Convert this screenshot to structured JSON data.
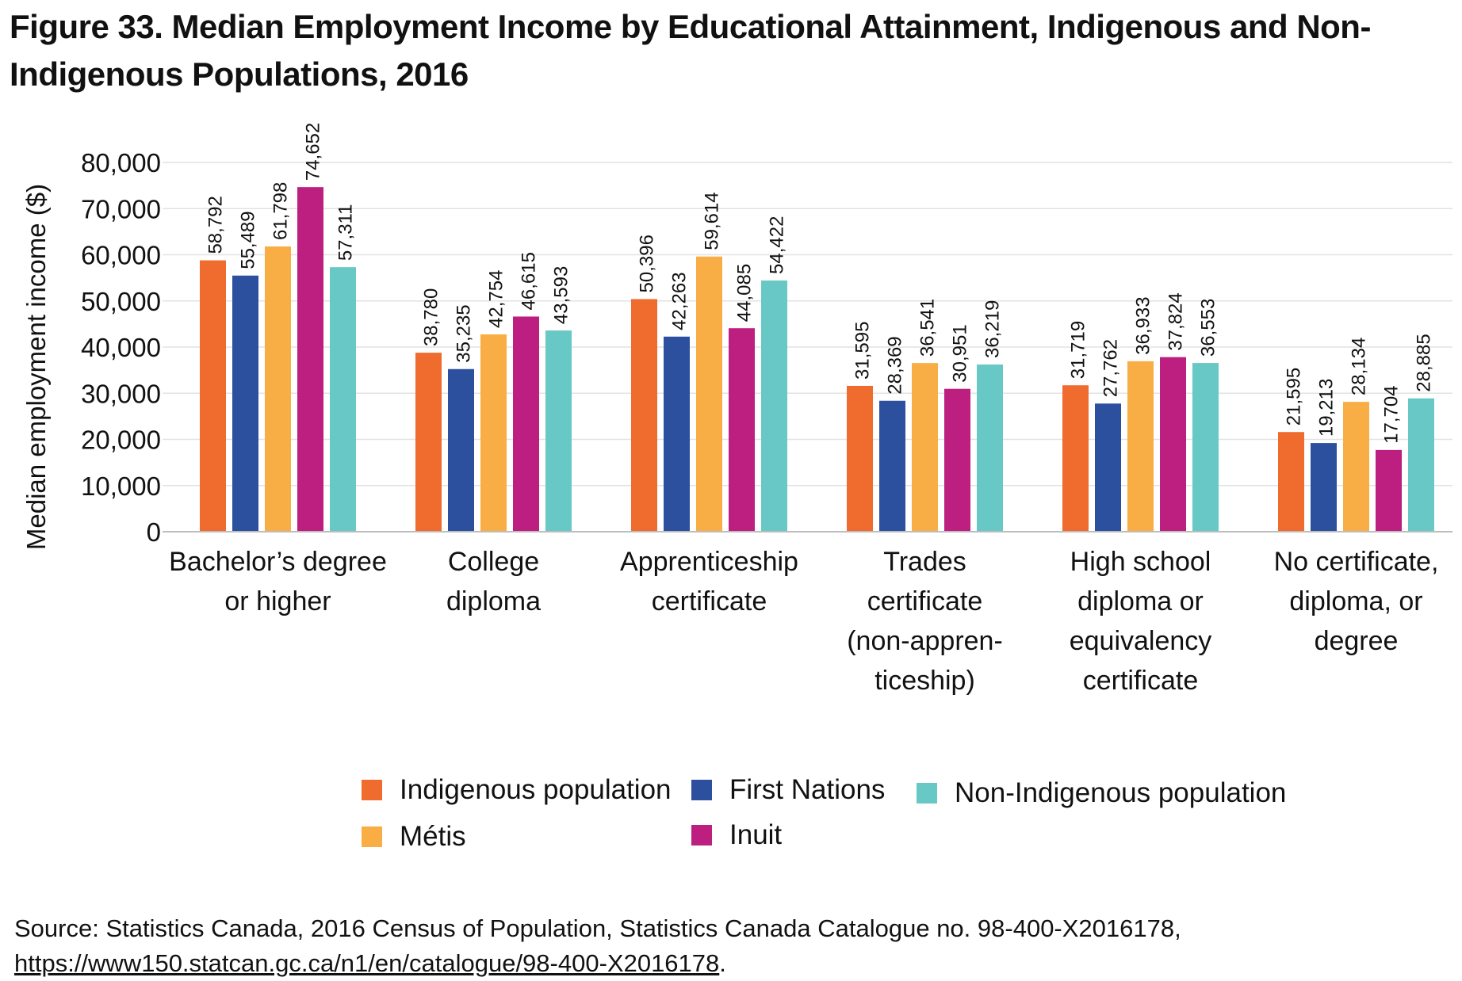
{
  "title": "Figure 33. Median Employment Income by Educational Attainment, Indigenous and Non-Indigenous Populations, 2016",
  "source": {
    "text": "Source: Statistics Canada, 2016 Census of Population, Statistics Canada Catalogue no. 98-400-X2016178,",
    "link": "https://www150.statcan.gc.ca/n1/en/catalogue/98-400-X2016178",
    "after_link": "."
  },
  "chart_data": {
    "type": "bar",
    "title": "Figure 33. Median Employment Income by Educational Attainment, Indigenous and Non-Indigenous Populations, 2016",
    "xlabel": "",
    "ylabel": "Median employment income ($)",
    "ylim": [
      0,
      80000
    ],
    "yticks": [
      "0",
      "10,000",
      "20,000",
      "30,000",
      "40,000",
      "50,000",
      "60,000",
      "70,000",
      "80,000"
    ],
    "grid": true,
    "legend_position": "bottom",
    "categories": [
      [
        "Bachelor’s degree",
        "or higher"
      ],
      [
        "College",
        "diploma"
      ],
      [
        "Apprenticeship",
        "certificate"
      ],
      [
        "Trades",
        "certificate",
        "(non-appren-",
        "ticeship)"
      ],
      [
        "High school",
        "diploma or",
        "equivalency",
        "certificate"
      ],
      [
        "No certificate,",
        "diploma, or",
        "degree"
      ]
    ],
    "series": [
      {
        "name": "Indigenous population",
        "color": "#ef6b2e",
        "values": [
          58792,
          38780,
          50396,
          31595,
          31719,
          21595
        ],
        "labels": [
          "58,792",
          "38,780",
          "50,396",
          "31,595",
          "31,719",
          "21,595"
        ]
      },
      {
        "name": "First Nations",
        "color": "#2c4f9e",
        "values": [
          55489,
          35235,
          42263,
          28369,
          27762,
          19213
        ],
        "labels": [
          "55,489",
          "35,235",
          "42,263",
          "28,369",
          "27,762",
          "19,213"
        ]
      },
      {
        "name": "Métis",
        "color": "#f9ad45",
        "values": [
          61798,
          42754,
          59614,
          36541,
          36933,
          28134
        ],
        "labels": [
          "61,798",
          "42,754",
          "59,614",
          "36,541",
          "36,933",
          "28,134"
        ]
      },
      {
        "name": "Inuit",
        "color": "#bd1f80",
        "values": [
          74652,
          46615,
          44085,
          30951,
          37824,
          17704
        ],
        "labels": [
          "74,652",
          "46,615",
          "44,085",
          "30,951",
          "37,824",
          "17,704"
        ]
      },
      {
        "name": "Non-Indigenous population",
        "color": "#68c8c6",
        "values": [
          57311,
          43593,
          54422,
          36219,
          36553,
          28885
        ],
        "labels": [
          "57,311",
          "43,593",
          "54,422",
          "36,219",
          "36,553",
          "28,885"
        ]
      }
    ]
  }
}
